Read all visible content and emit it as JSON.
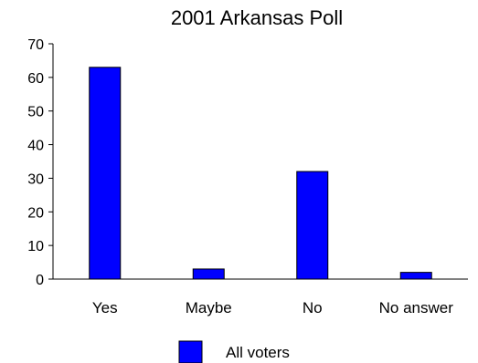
{
  "chart_data": {
    "type": "bar",
    "title": "2001 Arkansas Poll",
    "categories": [
      "Yes",
      "Maybe",
      "No",
      "No answer"
    ],
    "series": [
      {
        "name": "All voters",
        "values": [
          63,
          3,
          32,
          2
        ],
        "color": "#0000ff"
      }
    ],
    "xlabel": "",
    "ylabel": "",
    "ylim": [
      0,
      70
    ],
    "yticks": [
      0,
      10,
      20,
      30,
      40,
      50,
      60,
      70
    ],
    "grid": false,
    "legend": "bottom-center"
  }
}
